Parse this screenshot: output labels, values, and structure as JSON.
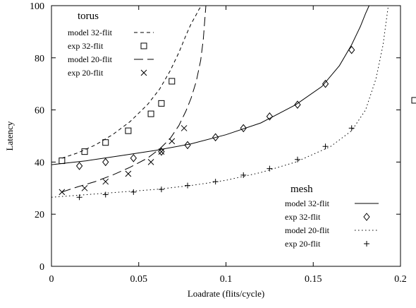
{
  "chart_data": {
    "type": "line",
    "title": "",
    "xlabel": "Loadrate (flits/cycle)",
    "ylabel": "Latency",
    "xlim": [
      0,
      0.2
    ],
    "ylim": [
      0,
      100
    ],
    "xticks": [
      "0",
      "0.05",
      "0.1",
      "0.15",
      "0.2"
    ],
    "yticks": [
      "0",
      "20",
      "40",
      "60",
      "80",
      "100"
    ],
    "grid": false,
    "legend_groups": [
      {
        "title": "torus",
        "placement": "top-left",
        "entries": [
          "model 32-flit",
          "exp  32-flit",
          "model 20-flit",
          "exp  20-flit"
        ]
      },
      {
        "title": "mesh",
        "placement": "bottom-right",
        "entries": [
          "model 32-flit",
          "exp  32-flit",
          "model 20-flit",
          "exp  20-flit"
        ]
      }
    ],
    "series": [
      {
        "name": "model 32-flit",
        "group": "torus",
        "kind": "line",
        "style": "short-dash",
        "x": [
          0.006,
          0.015,
          0.025,
          0.035,
          0.045,
          0.055,
          0.062,
          0.068,
          0.073,
          0.077,
          0.08,
          0.0825,
          0.0845,
          0.086
        ],
        "y": [
          41.5,
          43.5,
          46.5,
          50.5,
          55.5,
          62,
          68,
          75,
          82,
          88.5,
          93,
          96,
          98.5,
          100
        ]
      },
      {
        "name": "exp  32-flit",
        "group": "torus",
        "kind": "marker",
        "marker": "square",
        "x": [
          0.006,
          0.019,
          0.031,
          0.044,
          0.057,
          0.063,
          0.069
        ],
        "y": [
          40.5,
          44,
          47.5,
          52,
          58.5,
          62.5,
          71
        ]
      },
      {
        "name": "model 20-flit",
        "group": "torus",
        "kind": "line",
        "style": "long-dash",
        "x": [
          0.006,
          0.015,
          0.025,
          0.035,
          0.045,
          0.055,
          0.062,
          0.068,
          0.073,
          0.077,
          0.08,
          0.083,
          0.0855,
          0.087,
          0.0885
        ],
        "y": [
          28.5,
          30.5,
          32.5,
          35,
          38,
          41.5,
          45,
          49,
          54,
          59.5,
          64.5,
          71,
          79,
          87,
          100
        ]
      },
      {
        "name": "exp  20-flit",
        "group": "torus",
        "kind": "marker",
        "marker": "x",
        "x": [
          0.006,
          0.019,
          0.031,
          0.044,
          0.057,
          0.063,
          0.069,
          0.076
        ],
        "y": [
          28.5,
          30,
          32.5,
          35.5,
          40,
          44,
          48,
          53
        ]
      },
      {
        "name": "model 32-flit",
        "group": "mesh",
        "kind": "line",
        "style": "solid",
        "x": [
          0.0,
          0.02,
          0.04,
          0.06,
          0.08,
          0.1,
          0.12,
          0.14,
          0.155,
          0.165,
          0.172,
          0.177,
          0.18,
          0.182
        ],
        "y": [
          39,
          40.5,
          42.5,
          44.5,
          47,
          50.5,
          55,
          62,
          69,
          77,
          85,
          92,
          97,
          100
        ]
      },
      {
        "name": "exp  32-flit",
        "group": "mesh",
        "kind": "marker",
        "marker": "diamond",
        "x": [
          0.016,
          0.031,
          0.047,
          0.063,
          0.078,
          0.094,
          0.11,
          0.125,
          0.141,
          0.157,
          0.172
        ],
        "y": [
          38.5,
          40,
          41.5,
          44,
          46.5,
          49.5,
          53,
          57.5,
          62,
          70,
          83
        ]
      },
      {
        "name": "model 20-flit",
        "group": "mesh",
        "kind": "line",
        "style": "dotted",
        "x": [
          0.0,
          0.02,
          0.04,
          0.06,
          0.08,
          0.1,
          0.12,
          0.14,
          0.16,
          0.172,
          0.18,
          0.186,
          0.19,
          0.193
        ],
        "y": [
          26.5,
          27.5,
          28.5,
          29.5,
          31,
          33,
          36,
          40,
          46,
          52,
          60,
          72,
          85,
          100
        ]
      },
      {
        "name": "exp  20-flit",
        "group": "mesh",
        "kind": "marker",
        "marker": "plus",
        "x": [
          0.016,
          0.031,
          0.047,
          0.063,
          0.078,
          0.094,
          0.11,
          0.125,
          0.141,
          0.157,
          0.172
        ],
        "y": [
          26.5,
          27.5,
          28.5,
          29.5,
          31,
          32.5,
          35,
          37.5,
          41,
          46,
          53
        ]
      }
    ]
  }
}
